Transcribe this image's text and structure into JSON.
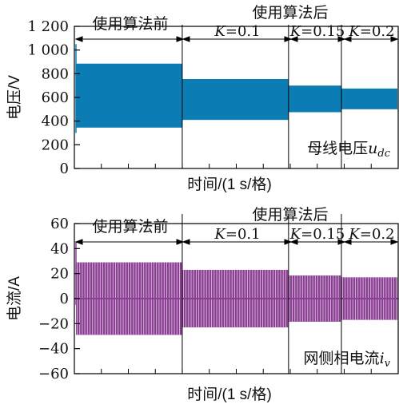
{
  "chart_data": [
    {
      "type": "area",
      "ylabel": "电压/V",
      "xlabel": "时间/(1 s/格)",
      "ylim": [
        0,
        1200
      ],
      "yticks": [
        0,
        200,
        400,
        600,
        800,
        1000,
        1200
      ],
      "ytick_labels": [
        "0",
        "200",
        "400",
        "600",
        "800",
        "1 000",
        "1 200"
      ],
      "grid": false,
      "color": "#0b7db4",
      "annotation": "母线电压",
      "annotation_symbol": "u",
      "annotation_subscript": "dc",
      "series": [
        {
          "x": [
            0,
            2.05
          ],
          "upper": 885,
          "lower": 345
        },
        {
          "x": [
            2.05,
            4.1
          ],
          "upper": 755,
          "lower": 410
        },
        {
          "x": [
            4.1,
            5.12
          ],
          "upper": 700,
          "lower": 475
        },
        {
          "x": [
            5.12,
            6.2
          ],
          "upper": 675,
          "lower": 500
        }
      ],
      "x_div_lines": [
        2.05,
        4.1,
        5.12
      ]
    },
    {
      "type": "area",
      "ylabel": "电流/A",
      "xlabel": "时间/(1 s/格)",
      "ylim": [
        -60,
        60
      ],
      "yticks": [
        -60,
        -40,
        -20,
        0,
        20,
        40,
        60
      ],
      "ytick_labels": [
        "−60",
        "−40",
        "−20",
        "0",
        "20",
        "40",
        "60"
      ],
      "grid": false,
      "color": "#8b3f93",
      "annotation": "网侧相电流",
      "annotation_symbol": "i",
      "annotation_subscript": "v",
      "series": [
        {
          "x": [
            0,
            2.05
          ],
          "upper": 29,
          "lower": -29
        },
        {
          "x": [
            2.05,
            4.1
          ],
          "upper": 23,
          "lower": -23
        },
        {
          "x": [
            4.1,
            5.12
          ],
          "upper": 18.5,
          "lower": -18.5
        },
        {
          "x": [
            5.12,
            6.2
          ],
          "upper": 17,
          "lower": -17
        }
      ],
      "x_div_lines": [
        2.05,
        4.1,
        5.12
      ]
    }
  ],
  "labels": {
    "before": "使用算法前",
    "after": "使用算法后",
    "k_symbol": "K",
    "k_values": [
      "=0.1",
      "=0.15",
      "=0.2"
    ]
  }
}
